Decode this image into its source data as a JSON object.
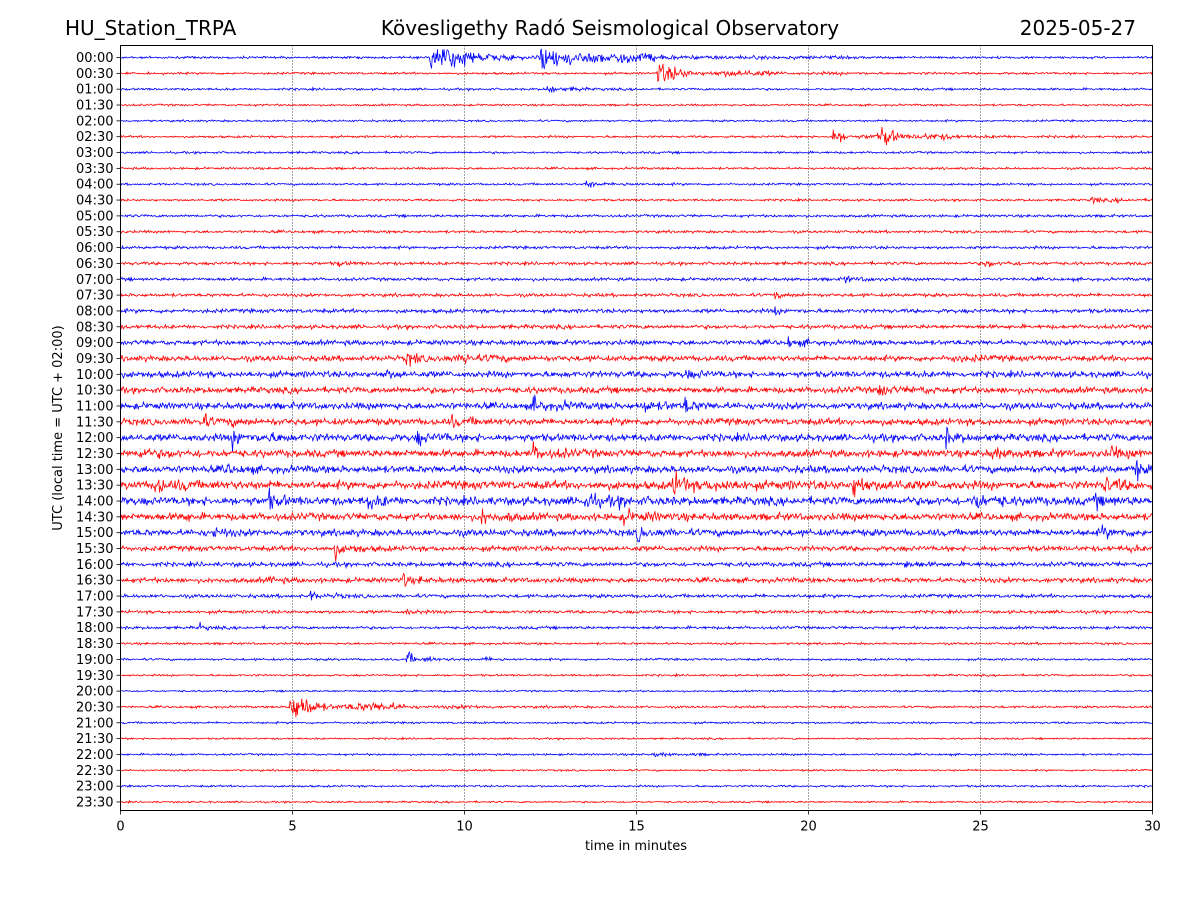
{
  "header": {
    "station": "HU_Station_TRPA",
    "observatory": "Kövesligethy Radó Seismological Observatory",
    "date": "2025-05-27"
  },
  "chart_data": {
    "type": "line",
    "subtype": "helicorder",
    "xlabel": "time in minutes",
    "ylabel": "UTC (local time = UTC + 02:00)",
    "xlim": [
      0,
      30
    ],
    "x_ticks": [
      "0",
      "5",
      "10",
      "15",
      "20",
      "25",
      "30"
    ],
    "x_tick_values": [
      0,
      5,
      10,
      15,
      20,
      25,
      30
    ],
    "vertical_grid": true,
    "trace_colors": [
      "#0000ff",
      "#ff0000"
    ],
    "rows": [
      {
        "label": "00:00",
        "amp": 1.0,
        "events": [
          {
            "t": 9.0,
            "a": 11,
            "d": 6
          },
          {
            "t": 12.2,
            "a": 10,
            "d": 3
          }
        ]
      },
      {
        "label": "00:30",
        "amp": 1.0,
        "events": [
          {
            "t": 15.6,
            "a": 9,
            "d": 3
          }
        ]
      },
      {
        "label": "01:00",
        "amp": 1.0,
        "events": [
          {
            "t": 12.4,
            "a": 5,
            "d": 1
          }
        ]
      },
      {
        "label": "01:30",
        "amp": 0.9,
        "events": []
      },
      {
        "label": "02:00",
        "amp": 0.9,
        "events": []
      },
      {
        "label": "02:30",
        "amp": 1.0,
        "events": [
          {
            "t": 20.7,
            "a": 7,
            "d": 1.5
          },
          {
            "t": 22.1,
            "a": 8,
            "d": 2
          }
        ]
      },
      {
        "label": "03:00",
        "amp": 1.0,
        "events": []
      },
      {
        "label": "03:30",
        "amp": 1.0,
        "events": []
      },
      {
        "label": "04:00",
        "amp": 1.0,
        "events": [
          {
            "t": 13.5,
            "a": 3,
            "d": 1.5
          }
        ]
      },
      {
        "label": "04:30",
        "amp": 1.0,
        "events": [
          {
            "t": 28.2,
            "a": 4,
            "d": 1
          }
        ]
      },
      {
        "label": "05:00",
        "amp": 1.2,
        "events": []
      },
      {
        "label": "05:30",
        "amp": 1.2,
        "events": []
      },
      {
        "label": "06:00",
        "amp": 1.3,
        "events": []
      },
      {
        "label": "06:30",
        "amp": 1.4,
        "events": [
          {
            "t": 6.3,
            "a": 3,
            "d": 0.5
          },
          {
            "t": 25.1,
            "a": 4,
            "d": 1
          }
        ]
      },
      {
        "label": "07:00",
        "amp": 1.4,
        "events": [
          {
            "t": 21.0,
            "a": 4,
            "d": 0.8
          }
        ]
      },
      {
        "label": "07:30",
        "amp": 1.5,
        "events": [
          {
            "t": 19.0,
            "a": 4,
            "d": 0.5
          }
        ]
      },
      {
        "label": "08:00",
        "amp": 1.8,
        "events": [
          {
            "t": 19.0,
            "a": 4,
            "d": 0.5
          }
        ]
      },
      {
        "label": "08:30",
        "amp": 1.8,
        "events": []
      },
      {
        "label": "09:00",
        "amp": 2.2,
        "events": [
          {
            "t": 19.4,
            "a": 6,
            "d": 0.6
          }
        ]
      },
      {
        "label": "09:30",
        "amp": 2.5,
        "events": [
          {
            "t": 8.3,
            "a": 5,
            "d": 1.5
          },
          {
            "t": 10.0,
            "a": 5,
            "d": 1
          },
          {
            "t": 24.2,
            "a": 5,
            "d": 0.8
          }
        ]
      },
      {
        "label": "10:00",
        "amp": 2.8,
        "events": [
          {
            "t": 7.7,
            "a": 5,
            "d": 0.5
          },
          {
            "t": 16.4,
            "a": 6,
            "d": 0.6
          }
        ]
      },
      {
        "label": "10:30",
        "amp": 2.8,
        "events": [
          {
            "t": 22.0,
            "a": 5,
            "d": 1.5
          }
        ]
      },
      {
        "label": "11:00",
        "amp": 3.0,
        "events": [
          {
            "t": 12.0,
            "a": 7,
            "d": 1.2
          },
          {
            "t": 15.2,
            "a": 7,
            "d": 0.8
          },
          {
            "t": 16.4,
            "a": 8,
            "d": 0.6
          }
        ]
      },
      {
        "label": "11:30",
        "amp": 3.0,
        "events": [
          {
            "t": 2.3,
            "a": 6,
            "d": 1.2
          },
          {
            "t": 9.6,
            "a": 5,
            "d": 0.8
          }
        ]
      },
      {
        "label": "12:00",
        "amp": 3.3,
        "events": [
          {
            "t": 3.2,
            "a": 7,
            "d": 1.5
          },
          {
            "t": 8.6,
            "a": 6,
            "d": 1
          },
          {
            "t": 24.0,
            "a": 8,
            "d": 0.5
          }
        ]
      },
      {
        "label": "12:30",
        "amp": 3.3,
        "events": [
          {
            "t": 0.5,
            "a": 6,
            "d": 1
          },
          {
            "t": 12.0,
            "a": 7,
            "d": 1
          },
          {
            "t": 25.3,
            "a": 6,
            "d": 1
          },
          {
            "t": 28.8,
            "a": 6,
            "d": 0.8
          }
        ]
      },
      {
        "label": "13:00",
        "amp": 3.3,
        "events": [
          {
            "t": 3.0,
            "a": 5,
            "d": 0.8
          },
          {
            "t": 29.5,
            "a": 8,
            "d": 0.8
          }
        ]
      },
      {
        "label": "13:30",
        "amp": 3.8,
        "events": [
          {
            "t": 1.0,
            "a": 8,
            "d": 1
          },
          {
            "t": 16.0,
            "a": 9,
            "d": 2
          },
          {
            "t": 21.3,
            "a": 9,
            "d": 1.5
          },
          {
            "t": 28.6,
            "a": 11,
            "d": 0.6
          }
        ]
      },
      {
        "label": "14:00",
        "amp": 3.8,
        "events": [
          {
            "t": 4.3,
            "a": 9,
            "d": 0.5
          },
          {
            "t": 7.2,
            "a": 10,
            "d": 0.5
          },
          {
            "t": 13.5,
            "a": 9,
            "d": 1.2
          },
          {
            "t": 24.8,
            "a": 9,
            "d": 1
          },
          {
            "t": 28.3,
            "a": 8,
            "d": 0.6
          }
        ]
      },
      {
        "label": "14:30",
        "amp": 3.3,
        "events": [
          {
            "t": 1.7,
            "a": 8,
            "d": 0.3
          },
          {
            "t": 10.5,
            "a": 6,
            "d": 1
          },
          {
            "t": 14.6,
            "a": 7,
            "d": 1
          }
        ]
      },
      {
        "label": "15:00",
        "amp": 3.0,
        "events": [
          {
            "t": 2.7,
            "a": 6,
            "d": 0.5
          },
          {
            "t": 15.0,
            "a": 7,
            "d": 0.8
          },
          {
            "t": 28.5,
            "a": 6,
            "d": 0.8
          }
        ]
      },
      {
        "label": "15:30",
        "amp": 2.3,
        "events": [
          {
            "t": 6.2,
            "a": 9,
            "d": 0.8
          },
          {
            "t": 29.3,
            "a": 5,
            "d": 0.3
          }
        ]
      },
      {
        "label": "16:00",
        "amp": 2.0,
        "events": [
          {
            "t": 22.8,
            "a": 4,
            "d": 0.6
          }
        ]
      },
      {
        "label": "16:30",
        "amp": 2.2,
        "events": [
          {
            "t": 8.2,
            "a": 8,
            "d": 0.6
          },
          {
            "t": 4.3,
            "a": 4,
            "d": 0.5
          }
        ]
      },
      {
        "label": "17:00",
        "amp": 1.6,
        "events": [
          {
            "t": 5.5,
            "a": 4,
            "d": 1
          }
        ]
      },
      {
        "label": "17:30",
        "amp": 1.4,
        "events": [
          {
            "t": 8.3,
            "a": 4,
            "d": 0.5
          }
        ]
      },
      {
        "label": "18:00",
        "amp": 1.3,
        "events": [
          {
            "t": 2.3,
            "a": 5,
            "d": 0.3
          }
        ]
      },
      {
        "label": "18:30",
        "amp": 1.0,
        "events": []
      },
      {
        "label": "19:00",
        "amp": 1.0,
        "events": [
          {
            "t": 8.3,
            "a": 8,
            "d": 0.8
          },
          {
            "t": 10.6,
            "a": 3,
            "d": 0.5
          }
        ]
      },
      {
        "label": "19:30",
        "amp": 0.9,
        "events": []
      },
      {
        "label": "20:00",
        "amp": 0.8,
        "events": []
      },
      {
        "label": "20:30",
        "amp": 1.0,
        "events": [
          {
            "t": 4.9,
            "a": 14,
            "d": 3
          }
        ]
      },
      {
        "label": "21:00",
        "amp": 0.9,
        "events": []
      },
      {
        "label": "21:30",
        "amp": 0.8,
        "events": []
      },
      {
        "label": "22:00",
        "amp": 0.9,
        "events": [
          {
            "t": 15.5,
            "a": 2,
            "d": 1.5
          }
        ]
      },
      {
        "label": "22:30",
        "amp": 0.8,
        "events": []
      },
      {
        "label": "23:00",
        "amp": 0.9,
        "events": []
      },
      {
        "label": "23:30",
        "amp": 0.8,
        "events": []
      }
    ]
  }
}
